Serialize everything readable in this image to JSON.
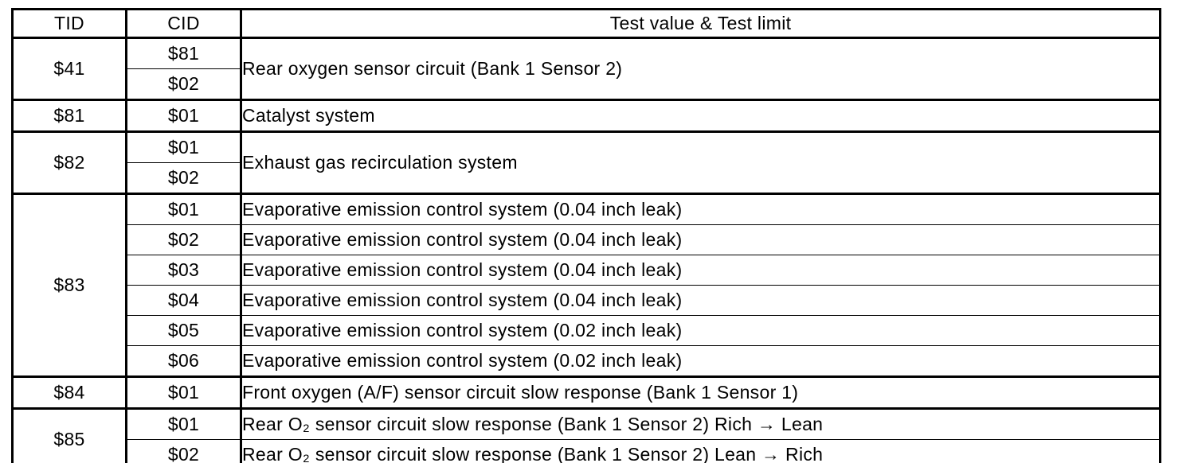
{
  "table": {
    "columns": [
      "TID",
      "CID",
      "Test value & Test limit"
    ],
    "groups": [
      {
        "tid": "$41",
        "merged_desc": "Rear oxygen sensor circuit (Bank 1 Sensor 2)",
        "rows": [
          {
            "cid": "$81"
          },
          {
            "cid": "$02"
          }
        ]
      },
      {
        "tid": "$81",
        "rows": [
          {
            "cid": "$01",
            "desc": "Catalyst system"
          }
        ]
      },
      {
        "tid": "$82",
        "merged_desc": "Exhaust gas recirculation system",
        "rows": [
          {
            "cid": "$01"
          },
          {
            "cid": "$02"
          }
        ]
      },
      {
        "tid": "$83",
        "rows": [
          {
            "cid": "$01",
            "desc": "Evaporative emission control system (0.04 inch leak)"
          },
          {
            "cid": "$02",
            "desc": "Evaporative emission control system (0.04 inch leak)"
          },
          {
            "cid": "$03",
            "desc": "Evaporative emission control system (0.04 inch leak)"
          },
          {
            "cid": "$04",
            "desc": "Evaporative emission control system (0.04 inch leak)"
          },
          {
            "cid": "$05",
            "desc": "Evaporative emission control system (0.02 inch leak)"
          },
          {
            "cid": "$06",
            "desc": "Evaporative emission control system (0.02 inch leak)"
          }
        ]
      },
      {
        "tid": "$84",
        "rows": [
          {
            "cid": "$01",
            "desc": "Front oxygen (A/F) sensor circuit slow response (Bank 1 Sensor 1)"
          }
        ]
      },
      {
        "tid": "$85",
        "rows": [
          {
            "cid": "$01",
            "desc": "Rear O₂ sensor circuit slow response (Bank 1 Sensor 2) Rich → Lean"
          },
          {
            "cid": "$02",
            "desc": "Rear O₂ sensor circuit slow response (Bank 1 Sensor 2) Lean → Rich"
          }
        ]
      }
    ]
  }
}
